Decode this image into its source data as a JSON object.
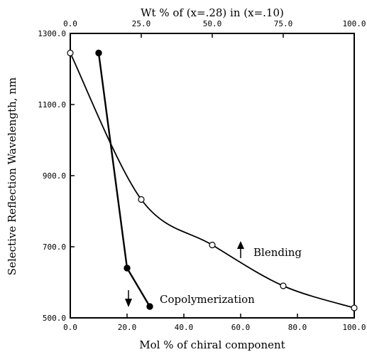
{
  "chart_data": {
    "type": "scatter",
    "title": "",
    "xlabel": "Mol % of chiral component",
    "ylabel": "Selective Reflection Wavelength, nm",
    "top_xlabel": "Wt % of (x=.28) in (x=.10)",
    "xlim": [
      0,
      100
    ],
    "ylim": [
      500,
      1300
    ],
    "x_ticks": [
      "0.0",
      "20.0",
      "40.0",
      "60.0",
      "80.0",
      "100.0"
    ],
    "y_ticks": [
      "500.0",
      "700.0",
      "900.0",
      "1100.0",
      "1300.0"
    ],
    "top_ticks": [
      "0.0",
      "25.0",
      "50.0",
      "75.0",
      "100.0"
    ],
    "grid": false,
    "series": [
      {
        "name": "Blending",
        "marker": "open-circle",
        "x": [
          0,
          25,
          50,
          75,
          100
        ],
        "y": [
          1245,
          833,
          705,
          590,
          528
        ]
      },
      {
        "name": "Copolymerization",
        "marker": "filled-circle",
        "x": [
          10,
          20,
          28
        ],
        "y": [
          1245,
          640,
          532
        ]
      }
    ],
    "annotations": [
      {
        "text": "Blending",
        "arrow": "up"
      },
      {
        "text": "Copolymerization",
        "arrow": "down"
      }
    ]
  }
}
